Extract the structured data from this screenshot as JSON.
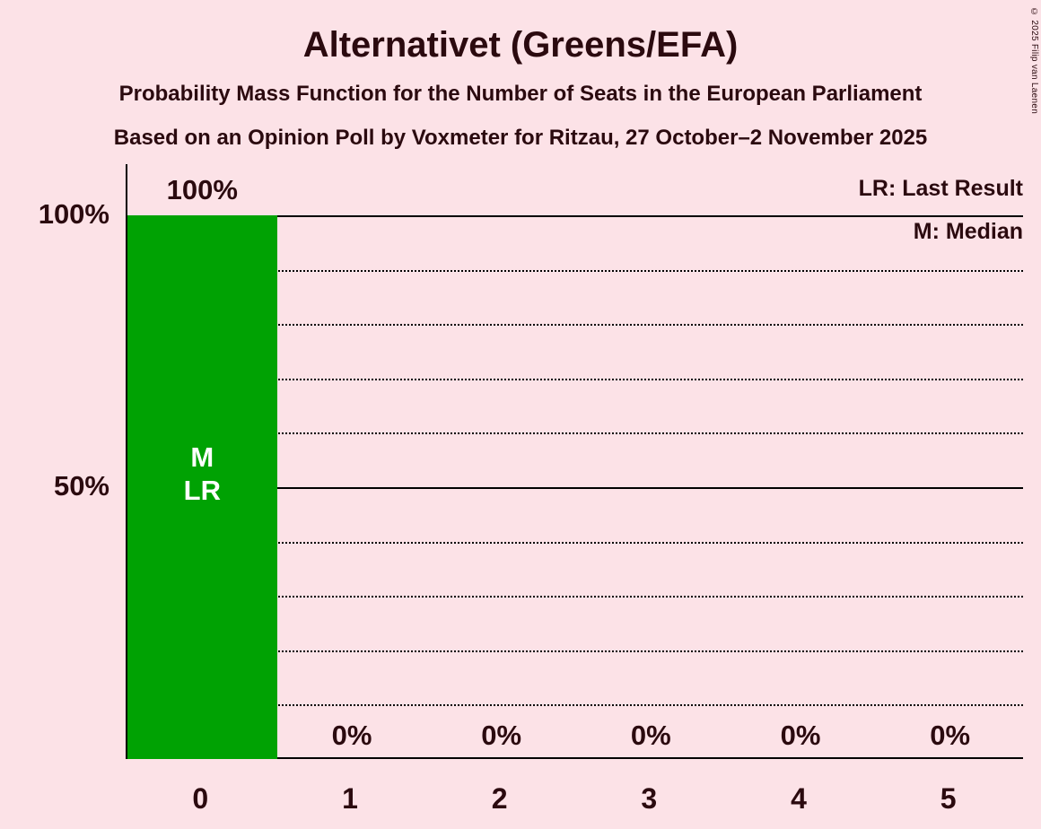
{
  "title": "Alternativet (Greens/EFA)",
  "subtitles": [
    "Probability Mass Function for the Number of Seats in the European Parliament",
    "Based on an Opinion Poll by Voxmeter for Ritzau, 27 October–2 November 2025"
  ],
  "legend": {
    "lr": "LR: Last Result",
    "m": "M: Median"
  },
  "copyright": "© 2025 Filip van Laenen",
  "colors": {
    "background": "#FCE2E7",
    "bar": "#00A203",
    "text": "#2B0A0F",
    "annotation_text": "#FFFFFF",
    "axis": "#000000"
  },
  "chart_data": {
    "type": "bar",
    "title": "Alternativet (Greens/EFA)",
    "categories": [
      "0",
      "1",
      "2",
      "3",
      "4",
      "5"
    ],
    "values": [
      100,
      0,
      0,
      0,
      0,
      0
    ],
    "value_labels": [
      "100%",
      "0%",
      "0%",
      "0%",
      "0%",
      "0%"
    ],
    "ylim": [
      0,
      110
    ],
    "y_ticks": [
      {
        "pct": 100,
        "label": "100%"
      },
      {
        "pct": 50,
        "label": "50%"
      }
    ],
    "gridlines": {
      "solid": [
        100,
        50
      ],
      "dotted": [
        90,
        80,
        70,
        60,
        40,
        30,
        20,
        10
      ]
    },
    "bar_color": "#00A203",
    "bar_annotations": [
      {
        "index": 0,
        "lines": [
          "M",
          "LR"
        ]
      }
    ],
    "legend_position": "top-right",
    "grid": true
  }
}
